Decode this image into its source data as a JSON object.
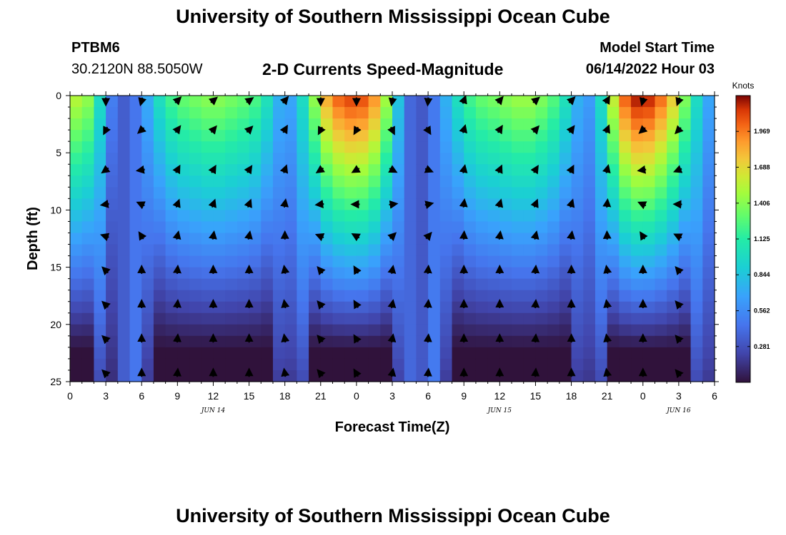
{
  "header": {
    "title": "University of Southern Mississippi Ocean Cube",
    "station_name": "PTBM6",
    "station_coords": "30.2120N  88.5050W",
    "subtitle": "2-D Currents Speed-Magnitude",
    "model_start_label": "Model Start Time",
    "model_start_value": "06/14/2022 Hour 03"
  },
  "footer": {
    "title": "University of Southern Mississippi Ocean Cube"
  },
  "chart_data": {
    "type": "heatmap",
    "title": "2-D Currents Speed-Magnitude",
    "xlabel": "Forecast Time(Z)",
    "ylabel": "Depth (ft)",
    "xlim": [
      0,
      54
    ],
    "ylim": [
      0,
      25
    ],
    "y_inverted": true,
    "x_ticks": [
      0,
      3,
      6,
      9,
      12,
      15,
      18,
      21,
      24,
      27,
      30,
      33,
      36,
      39,
      42,
      45,
      48,
      51,
      54
    ],
    "x_tick_labels": [
      "0",
      "3",
      "6",
      "9",
      "12",
      "15",
      "18",
      "21",
      "0",
      "3",
      "6",
      "9",
      "12",
      "15",
      "18",
      "21",
      "0",
      "3",
      "6"
    ],
    "y_ticks": [
      0,
      5,
      10,
      15,
      20,
      25
    ],
    "y_tick_labels": [
      "0",
      "5",
      "10",
      "15",
      "20",
      "25"
    ],
    "date_labels": [
      {
        "x": 12,
        "label": "JUN 14"
      },
      {
        "x": 36,
        "label": "JUN 15"
      },
      {
        "x": 51,
        "label": "JUN 16"
      }
    ],
    "colorbar": {
      "units": "Knots",
      "min": 0.0,
      "max": 2.25,
      "tick_values": [
        0.281,
        0.562,
        0.844,
        1.125,
        1.406,
        1.688,
        1.969
      ],
      "tick_labels": [
        "0.281",
        "0.562",
        "0.844",
        "1.125",
        "1.406",
        "1.688",
        "1.969"
      ]
    },
    "speed_profile": {
      "hours": [
        0,
        1,
        2,
        3,
        4,
        5,
        6,
        7,
        8,
        9,
        10,
        11,
        12,
        13,
        14,
        15,
        16,
        17,
        18,
        19,
        20,
        21,
        22,
        23,
        24,
        25,
        26,
        27,
        28,
        29,
        30,
        31,
        32,
        33,
        34,
        35,
        36,
        37,
        38,
        39,
        40,
        41,
        42,
        43,
        44,
        45,
        46,
        47,
        48,
        49,
        50,
        51,
        52,
        53,
        54
      ],
      "surface_speed_kn": [
        1.5,
        1.6,
        1.3,
        0.7,
        0.3,
        0.35,
        0.55,
        0.9,
        1.15,
        1.3,
        1.35,
        1.4,
        1.45,
        1.4,
        1.35,
        1.3,
        1.2,
        0.9,
        0.6,
        0.8,
        1.2,
        1.7,
        2.0,
        2.1,
        2.15,
        2.05,
        1.8,
        1.2,
        0.5,
        0.25,
        0.35,
        0.6,
        0.9,
        1.15,
        1.3,
        1.35,
        1.4,
        1.45,
        1.5,
        1.45,
        1.35,
        1.2,
        0.9,
        0.6,
        0.7,
        1.3,
        1.9,
        2.2,
        2.25,
        2.15,
        1.9,
        1.6,
        1.2,
        0.8,
        0.6
      ],
      "depth_decay_per_ft": 0.05
    },
    "vectors": {
      "x_hours": [
        3,
        6,
        9,
        12,
        15,
        18,
        21,
        24,
        27,
        30,
        33,
        36,
        39,
        42,
        45,
        48,
        51
      ],
      "depths_ft": [
        0,
        3,
        6.5,
        9.5,
        12.3,
        15.3,
        18.3,
        21.3,
        24.3
      ],
      "near_surface_direction_deg": [
        180,
        195,
        45,
        50,
        55,
        40,
        180,
        180,
        190,
        185,
        20,
        40,
        50,
        45,
        30,
        195,
        200
      ],
      "deep_direction_deg": [
        315,
        0,
        5,
        0,
        0,
        350,
        320,
        330,
        10,
        5,
        0,
        0,
        5,
        0,
        350,
        0,
        320
      ]
    }
  }
}
